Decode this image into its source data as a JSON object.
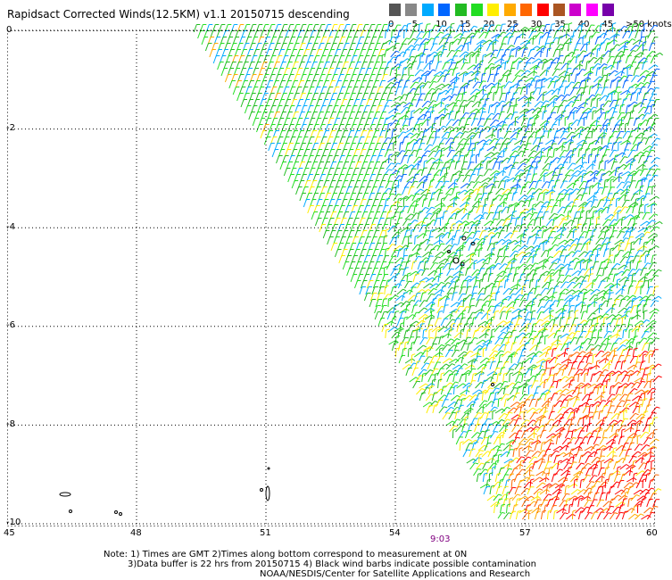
{
  "title": "Rapidsact Corrected Winds(12.5KM) v1.1 20150715 descending",
  "legend": {
    "swatches": [
      "#555555",
      "#888888",
      "#00aaff",
      "#0066ff",
      "#22bb22",
      "#22dd22",
      "#ffee00",
      "#ffaa00",
      "#ff6600",
      "#ff0000",
      "#aa5522",
      "#cc00cc",
      "#ff00ff",
      "#7700aa"
    ],
    "labels": [
      "0",
      "5",
      "10",
      "15",
      "20",
      "25",
      "30",
      "35",
      "40",
      "45",
      ">50 knots"
    ]
  },
  "axes": {
    "y_ticks": [
      "0",
      "-2",
      "-4",
      "-6",
      "-8",
      "-10"
    ],
    "x_ticks": [
      "45",
      "48",
      "51",
      "54",
      "57",
      "60"
    ]
  },
  "timestamp": "9:03",
  "notes": {
    "line1": "Note: 1) Times are GMT 2)Times along bottom correspond to measurement at 0N",
    "line2": "3)Data buffer is 22 hrs from 20150715 4) Black wind barbs indicate possible contamination",
    "line3": "NOAA/NESDIS/Center for Satellite Applications and Research"
  }
}
